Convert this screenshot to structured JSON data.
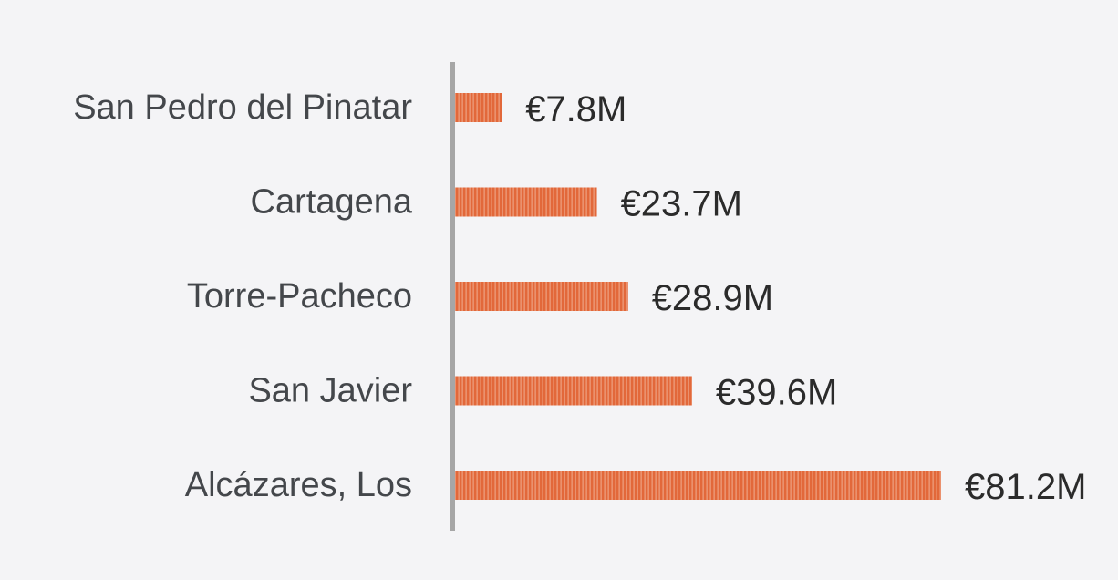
{
  "chart_data": {
    "type": "bar",
    "orientation": "horizontal",
    "categories": [
      "San Pedro del Pinatar",
      "Cartagena",
      "Torre-Pacheco",
      "San Javier",
      "Alcázares, Los"
    ],
    "values": [
      7.8,
      23.7,
      28.9,
      39.6,
      81.2
    ],
    "value_labels": [
      "€7.8M",
      "€23.7M",
      "€28.9M",
      "€39.6M",
      "€81.2M"
    ],
    "title": "",
    "xlabel": "",
    "ylabel": "",
    "xlim": [
      0,
      81.2
    ],
    "grid": false,
    "legend": "none",
    "colors": {
      "bar": "#e2683a",
      "bar_hatch": "#fbe3d6",
      "axis": "#a6a6a6",
      "category_text": "#44474b",
      "value_text": "#2b2b2b",
      "background": "#f4f4f6"
    }
  }
}
